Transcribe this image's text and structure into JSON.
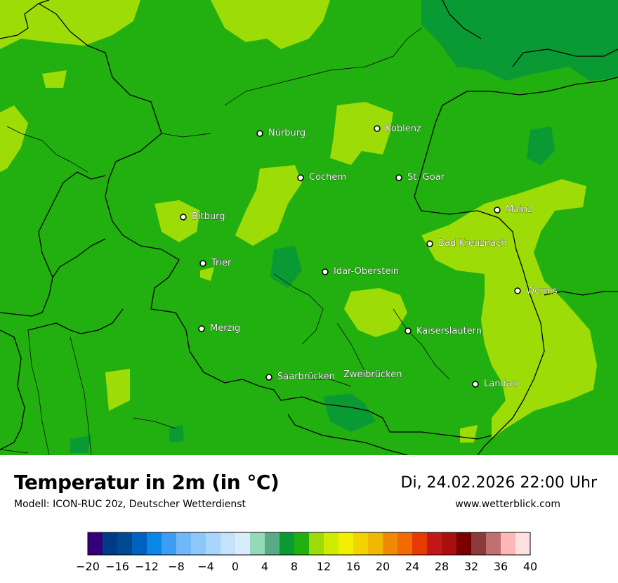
{
  "title": "Temperatur in 2m (in °C)",
  "model": "Modell: ICON-RUC 20z, Deutscher Wetterdienst",
  "datetime": "Di, 24.02.2026 22:00 Uhr",
  "website": "www.wetterblick.com",
  "cities": [
    {
      "id": "nuerburg",
      "name": "Nürburg"
    },
    {
      "id": "koblenz",
      "name": "Koblenz"
    },
    {
      "id": "cochem",
      "name": "Cochem"
    },
    {
      "id": "st-goar",
      "name": "St. Goar"
    },
    {
      "id": "bitburg",
      "name": "Bitburg"
    },
    {
      "id": "mainz",
      "name": "Mainz"
    },
    {
      "id": "bad-kreuznach",
      "name": "Bad Kreuznach"
    },
    {
      "id": "trier",
      "name": "Trier"
    },
    {
      "id": "idar-oberstein",
      "name": "Idar-Oberstein"
    },
    {
      "id": "worms",
      "name": "Worms"
    },
    {
      "id": "merzig",
      "name": "Merzig"
    },
    {
      "id": "kaiserslautern",
      "name": "Kaiserslautern"
    },
    {
      "id": "saarbruecken",
      "name": "Saarbrücken"
    },
    {
      "id": "zweibruecken",
      "name": "Zweibrücken"
    },
    {
      "id": "landau",
      "name": "Landau"
    }
  ],
  "legend": {
    "min": -20,
    "max": 40,
    "step": 2,
    "tick_labels": [
      "−20",
      "−16",
      "−12",
      "−8",
      "−4",
      "0",
      "4",
      "8",
      "12",
      "16",
      "20",
      "24",
      "28",
      "32",
      "36",
      "40"
    ],
    "colors": [
      "#33007a",
      "#003b87",
      "#004a93",
      "#0062c0",
      "#0a86e6",
      "#3b9ef2",
      "#70b8f7",
      "#8ec7f9",
      "#a8d5fb",
      "#c4e2fc",
      "#d9ecfd",
      "#94d9b8",
      "#5aa987",
      "#0a9a34",
      "#21b00f",
      "#9ddc06",
      "#cfec00",
      "#f0f000",
      "#f2d200",
      "#f2b800",
      "#f28a00",
      "#f26a00",
      "#e63a00",
      "#c41818",
      "#a80f0f",
      "#7a0000",
      "#8a3a3a",
      "#c07070",
      "#ffb6b6",
      "#ffe0e0"
    ]
  },
  "map_colors": {
    "base": "#21b00f",
    "warm": "#9ddc06",
    "cool": "#0a9a34"
  }
}
